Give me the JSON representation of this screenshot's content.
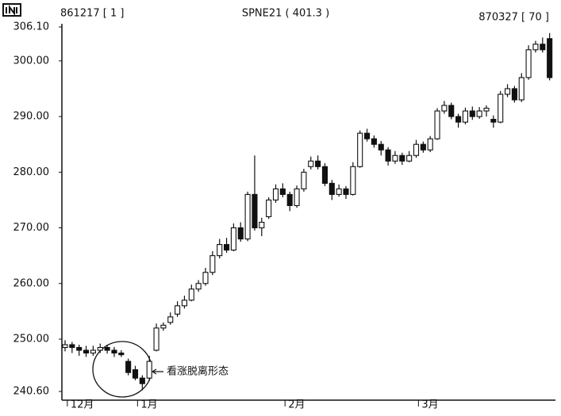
{
  "chart_data": {
    "type": "candlestick",
    "title": "SPNE21 ( 401.3 )",
    "start_label": "861217 [ 1 ]",
    "end_label": "870327 [ 70 ]",
    "annotation": "看涨脱离形态",
    "ylim": [
      240.6,
      306.1
    ],
    "yticks": [
      {
        "value": 240.6,
        "label": "240.60"
      },
      {
        "value": 250,
        "label": "250.00"
      },
      {
        "value": 260,
        "label": "260.00"
      },
      {
        "value": 270,
        "label": "270.00"
      },
      {
        "value": 280,
        "label": "280.00"
      },
      {
        "value": 290,
        "label": "290.00"
      },
      {
        "value": 300,
        "label": "300.00"
      },
      {
        "value": 306.1,
        "label": "306.10"
      }
    ],
    "categories": [
      null,
      "12月",
      null,
      null,
      null,
      null,
      null,
      null,
      null,
      null,
      null,
      "1月",
      null,
      null,
      null,
      null,
      null,
      null,
      null,
      null,
      null,
      null,
      null,
      null,
      null,
      null,
      null,
      null,
      null,
      null,
      null,
      null,
      "2月",
      null,
      null,
      null,
      null,
      null,
      null,
      null,
      null,
      null,
      null,
      null,
      null,
      null,
      null,
      null,
      null,
      null,
      null,
      "3月",
      null,
      null,
      null,
      null,
      null,
      null,
      null,
      null,
      null,
      null,
      null,
      null,
      null,
      null,
      null,
      null,
      null,
      null
    ],
    "up_color": "#ffffff",
    "down_color": "#111111",
    "open": [
      248.5,
      249,
      248.5,
      248,
      247.5,
      248,
      248.5,
      248,
      247.5,
      246,
      244.5,
      243,
      243,
      248,
      252,
      253,
      254.5,
      256,
      257,
      259,
      260,
      262,
      265,
      267,
      266,
      270,
      268,
      276,
      270,
      272,
      275,
      277,
      276,
      274,
      277,
      281,
      282,
      281,
      278,
      276,
      277,
      276,
      281,
      287,
      286,
      285,
      284,
      282,
      283,
      282,
      283,
      285,
      284,
      286,
      291,
      292,
      290,
      289,
      291,
      290,
      291,
      289.5,
      289,
      294,
      295,
      293,
      297,
      302,
      303,
      304
    ],
    "high": [
      249.8,
      249.5,
      249,
      248.8,
      248.8,
      249.2,
      249,
      248.6,
      248,
      246.5,
      245.2,
      243.5,
      247,
      252.8,
      253,
      254.8,
      256.8,
      257.8,
      259.8,
      260.6,
      262.8,
      265.8,
      268,
      268.2,
      270.8,
      271,
      276.5,
      283,
      271.8,
      275.5,
      277.8,
      278,
      276.5,
      277.6,
      280.6,
      282.8,
      283,
      281.6,
      278.6,
      277.8,
      277.5,
      281.8,
      287.5,
      287.8,
      286.6,
      285.6,
      284.5,
      283.8,
      283.5,
      283.8,
      285.8,
      285.5,
      286.5,
      291.5,
      292.8,
      292.5,
      290.5,
      291.6,
      291.8,
      291.7,
      292,
      290.2,
      294.6,
      295.8,
      295.5,
      297.8,
      302.8,
      303.6,
      304.2,
      305
    ],
    "low": [
      247.8,
      247.5,
      247,
      246.8,
      247,
      247.5,
      247.4,
      246.8,
      246.8,
      243.5,
      242.6,
      240.8,
      242.5,
      247.8,
      251.5,
      252.6,
      254,
      255.5,
      256.8,
      258.5,
      259.6,
      261.5,
      264.5,
      265.5,
      265.8,
      267.5,
      267.6,
      269.5,
      268.5,
      271.6,
      274.5,
      275.5,
      273,
      273.6,
      276.5,
      280.5,
      280.5,
      277.5,
      275,
      275.6,
      275.2,
      275.8,
      280.8,
      285.5,
      284.4,
      283,
      281.2,
      281.5,
      281.3,
      281.8,
      282.6,
      283.5,
      283.6,
      285.8,
      290.5,
      289.5,
      288,
      288.6,
      289.4,
      289.6,
      290,
      288,
      288.8,
      293.5,
      292.5,
      292.6,
      296.6,
      301.5,
      301.5,
      296.5
    ],
    "close": [
      249,
      248.5,
      248,
      247.5,
      248,
      248.5,
      248,
      247.5,
      247.2,
      244,
      243,
      242,
      246,
      252,
      252.5,
      254,
      256,
      257,
      259,
      260,
      262,
      265,
      267,
      266,
      270,
      268,
      276,
      270,
      271,
      275,
      277,
      276,
      274,
      277,
      280,
      282,
      281,
      278,
      276,
      277,
      276,
      281,
      287,
      286,
      285,
      284,
      282,
      283,
      282,
      283,
      285,
      284,
      286,
      291,
      292,
      290,
      289,
      291,
      290,
      291,
      291.5,
      289,
      294,
      295,
      293,
      297,
      302,
      303,
      302,
      297
    ]
  }
}
